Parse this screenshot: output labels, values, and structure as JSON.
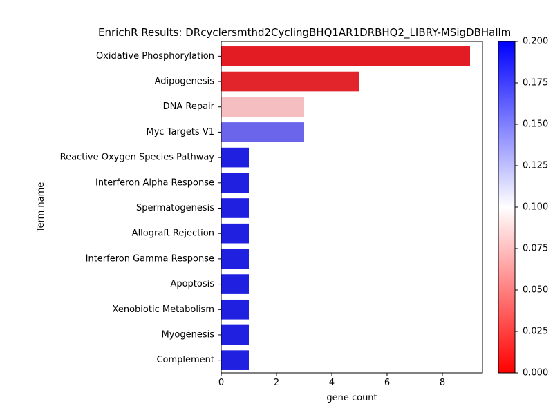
{
  "chart_data": {
    "type": "bar",
    "orientation": "horizontal",
    "title": "EnrichR Results: DRcyclersmthd2CyclingBHQ1AR1DRBHQ2_LIBRY-MSigDBHallm",
    "xlabel": "gene count",
    "ylabel": "Term name",
    "xlim": [
      0,
      9.45
    ],
    "xticks": [
      "0",
      "2",
      "4",
      "6",
      "8"
    ],
    "xtick_values": [
      0,
      2,
      4,
      6,
      8
    ],
    "grid": false,
    "categories": [
      "Oxidative Phosphorylation",
      "Adipogenesis",
      "DNA Repair",
      "Myc Targets V1",
      "Reactive Oxygen Species Pathway",
      "Interferon Alpha Response",
      "Spermatogenesis",
      "Allograft Rejection",
      "Interferon Gamma Response",
      "Apoptosis",
      "Xenobiotic Metabolism",
      "Myogenesis",
      "Complement"
    ],
    "values": [
      9,
      5,
      3,
      3,
      1,
      1,
      1,
      1,
      1,
      1,
      1,
      1,
      1
    ],
    "bar_colors": [
      "#e31b22",
      "#e1252b",
      "#f5bfc2",
      "#6a65eb",
      "#2020e1",
      "#2020e1",
      "#2020e1",
      "#2020e1",
      "#2020e1",
      "#2020e1",
      "#2020e1",
      "#2020e1",
      "#2020e1"
    ],
    "colorbar": {
      "colormap": "bwr_r",
      "range": [
        0,
        0.2
      ],
      "ticks": [
        "0.000",
        "0.025",
        "0.050",
        "0.075",
        "0.100",
        "0.125",
        "0.150",
        "0.175",
        "0.200"
      ],
      "tick_values": [
        0,
        0.025,
        0.05,
        0.075,
        0.1,
        0.125,
        0.15,
        0.175,
        0.2
      ],
      "colors": {
        "low": "#ff0000",
        "mid": "#ffffff",
        "high": "#0000ff"
      }
    }
  }
}
